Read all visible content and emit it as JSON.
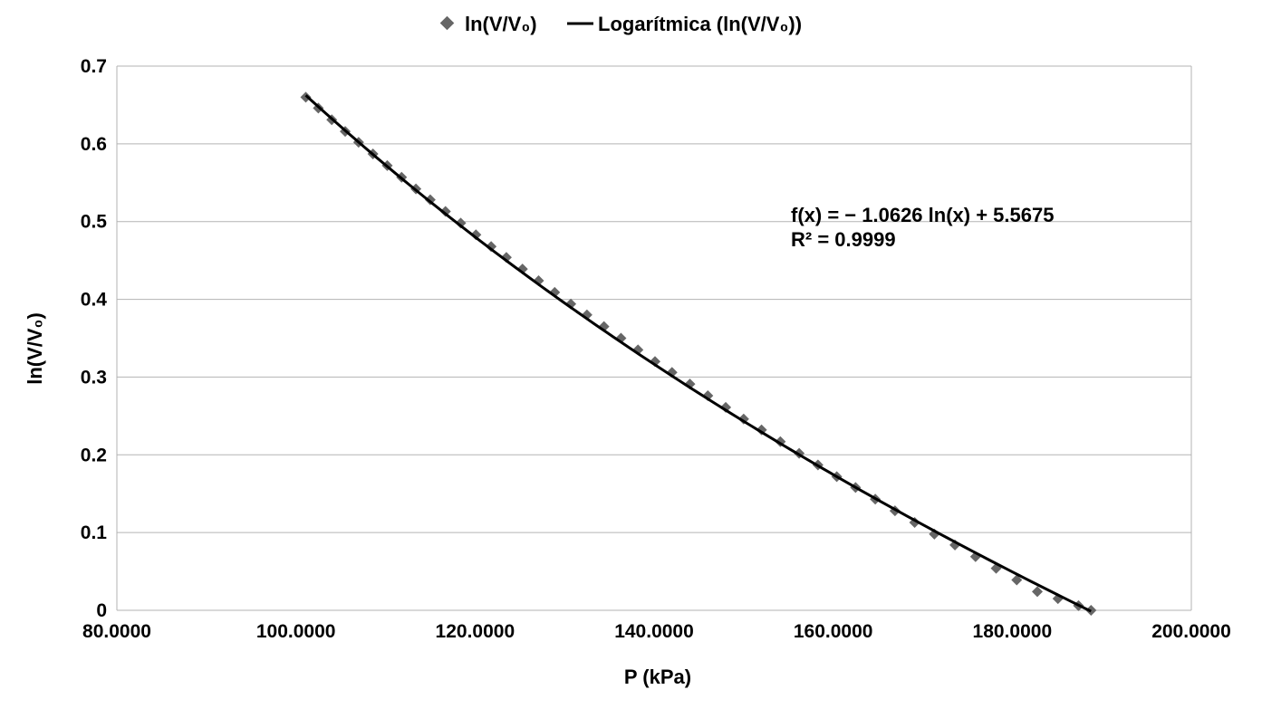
{
  "chart_data": {
    "type": "scatter",
    "xlabel": "P (kPa)",
    "ylabel": "ln(V/V₀)",
    "xlim": [
      80,
      200
    ],
    "ylim": [
      0,
      0.7
    ],
    "xticks": [
      80,
      100,
      120,
      140,
      160,
      180,
      200
    ],
    "xtick_labels": [
      "80.0000",
      "100.0000",
      "120.0000",
      "140.0000",
      "160.0000",
      "180.0000",
      "200.0000"
    ],
    "yticks": [
      0,
      0.1,
      0.2,
      0.3,
      0.4,
      0.5,
      0.6,
      0.7
    ],
    "ytick_labels": [
      "0",
      "0.1",
      "0.2",
      "0.3",
      "0.4",
      "0.5",
      "0.6",
      "0.7"
    ],
    "grid": "horizontal",
    "legend_position": "top-center",
    "series": [
      {
        "name": "ln(V/V₀)",
        "kind": "points",
        "marker": "diamond",
        "color": "#666666",
        "x": [
          101.1,
          102.5,
          104.0,
          105.5,
          107.0,
          108.6,
          110.2,
          111.8,
          113.4,
          115.0,
          116.7,
          118.4,
          120.1,
          121.8,
          123.5,
          125.3,
          127.1,
          128.9,
          130.7,
          132.5,
          134.4,
          136.3,
          138.2,
          140.1,
          142.0,
          144.0,
          146.0,
          148.0,
          150.0,
          152.0,
          154.1,
          156.2,
          158.3,
          160.4,
          162.5,
          164.7,
          166.9,
          169.1,
          171.3,
          173.6,
          175.9,
          178.2,
          180.5,
          182.8,
          185.1,
          187.4,
          188.8
        ],
        "y": [
          0.66,
          0.646,
          0.631,
          0.616,
          0.602,
          0.587,
          0.572,
          0.557,
          0.542,
          0.528,
          0.513,
          0.498,
          0.483,
          0.468,
          0.454,
          0.439,
          0.424,
          0.409,
          0.394,
          0.38,
          0.365,
          0.35,
          0.335,
          0.32,
          0.306,
          0.291,
          0.276,
          0.261,
          0.246,
          0.232,
          0.217,
          0.202,
          0.187,
          0.172,
          0.158,
          0.143,
          0.128,
          0.113,
          0.098,
          0.084,
          0.069,
          0.054,
          0.039,
          0.024,
          0.015,
          0.006,
          0.0
        ]
      },
      {
        "name": "Logarítmica (ln(V/V₀))",
        "kind": "trendline",
        "color": "#000000",
        "equation": "f(x) = − 1.0626 ln(x) + 5.5675",
        "r_squared": "R² = 0.9999",
        "a": -1.0626,
        "b": 5.5675,
        "x_range": [
          101.1,
          188.8
        ]
      }
    ]
  }
}
